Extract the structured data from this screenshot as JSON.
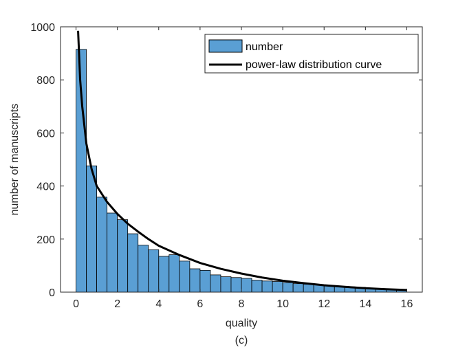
{
  "chart_data": {
    "type": "bar",
    "caption": "(c)",
    "xlabel": "quality",
    "ylabel": "number of manuscripts",
    "xlim": [
      -0.75,
      16.75
    ],
    "ylim": [
      0,
      1000
    ],
    "xticks": [
      0,
      2,
      4,
      6,
      8,
      10,
      12,
      14,
      16
    ],
    "yticks": [
      0,
      200,
      400,
      600,
      800,
      1000
    ],
    "bin_width": 0.5,
    "series": [
      {
        "name": "number",
        "kind": "histogram",
        "color": "#5a9fd4",
        "edge_color": "#000000",
        "bin_edges": [
          0,
          0.5,
          1,
          1.5,
          2,
          2.5,
          3,
          3.5,
          4,
          4.5,
          5,
          5.5,
          6,
          6.5,
          7,
          7.5,
          8,
          8.5,
          9,
          9.5,
          10,
          10.5,
          11,
          11.5,
          12,
          12.5,
          13,
          13.5,
          14,
          14.5,
          15,
          15.5,
          16
        ],
        "values": [
          915,
          476,
          358,
          298,
          273,
          220,
          177,
          160,
          135,
          141,
          117,
          88,
          82,
          65,
          58,
          55,
          52,
          45,
          42,
          40,
          36,
          32,
          30,
          27,
          25,
          22,
          20,
          18,
          15,
          13,
          11,
          9
        ]
      },
      {
        "name": "power-law distribution curve",
        "kind": "line",
        "color": "#000000",
        "x": [
          0.1,
          0.2,
          0.3,
          0.5,
          0.75,
          1,
          1.5,
          2,
          2.5,
          3,
          3.5,
          4,
          5,
          6,
          7,
          8,
          9,
          10,
          11,
          12,
          13,
          14,
          15,
          16
        ],
        "y": [
          985,
          800,
          700,
          560,
          465,
          400,
          340,
          295,
          258,
          228,
          200,
          175,
          140,
          110,
          88,
          70,
          55,
          43,
          34,
          26,
          20,
          15,
          11,
          8
        ]
      }
    ],
    "legend_position": "top-right",
    "grid": false
  }
}
